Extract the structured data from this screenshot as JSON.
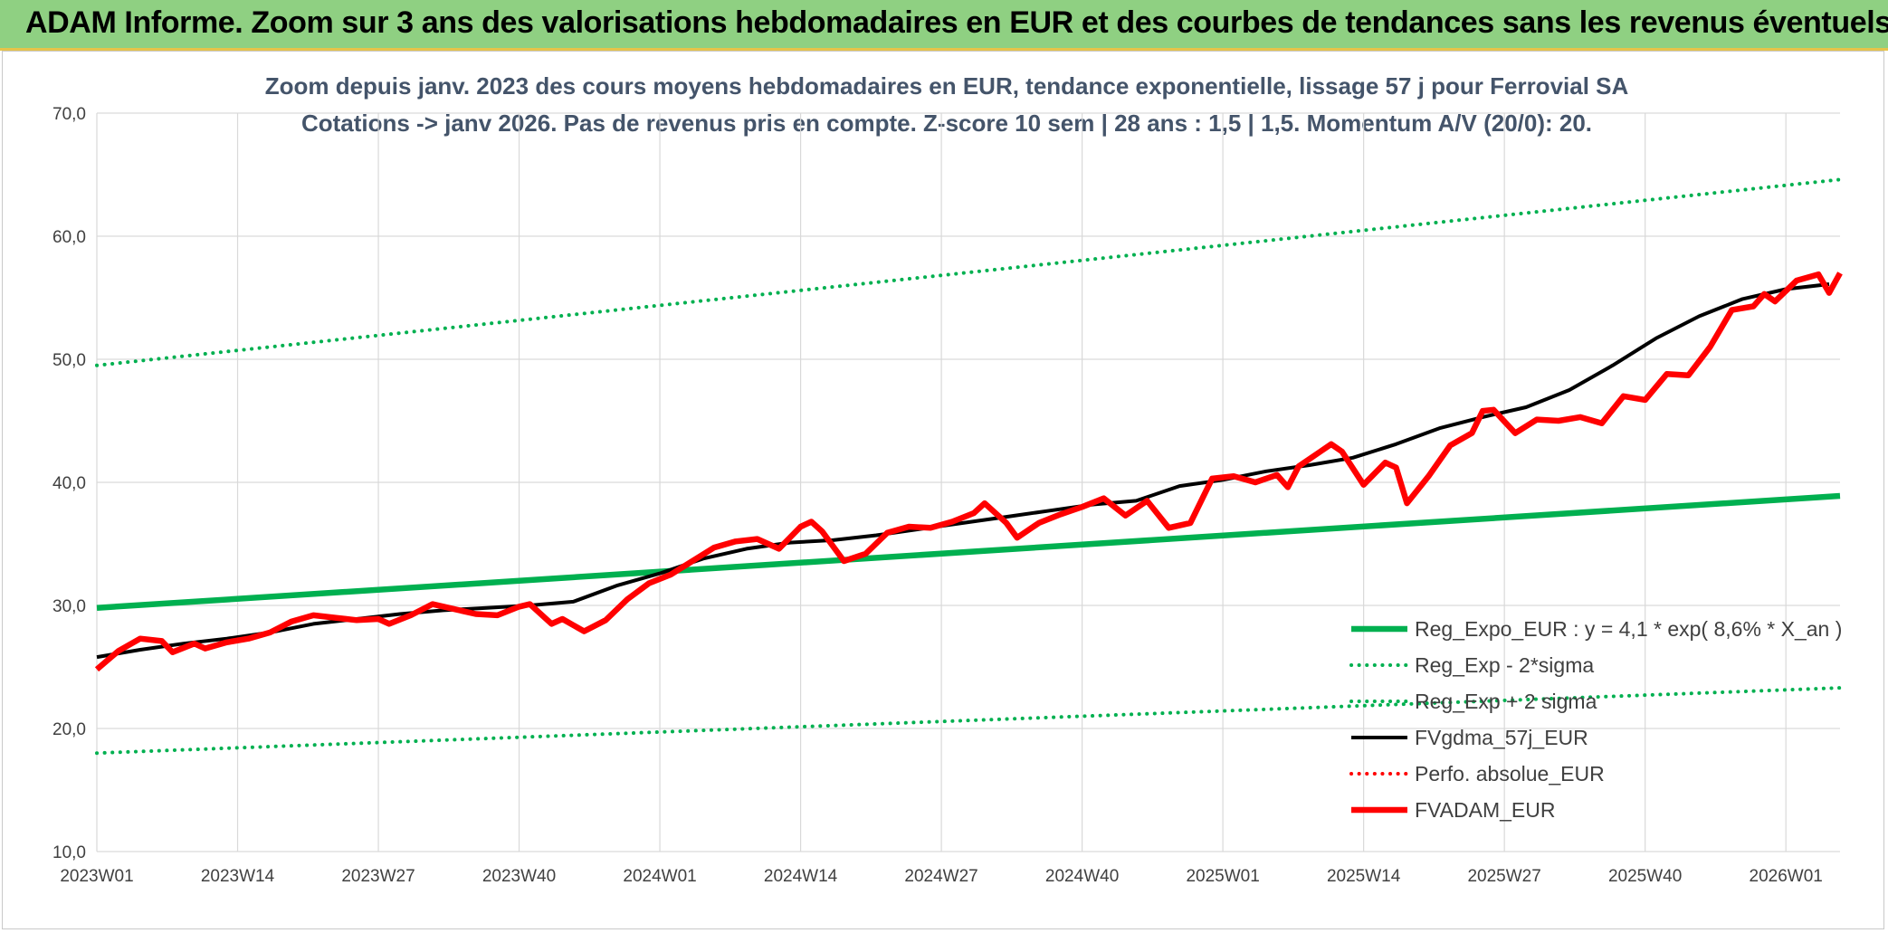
{
  "banner": {
    "title": "ADAM Informe. Zoom sur 3 ans des valorisations hebdomadaires en EUR et des courbes de tendances sans les revenus éventuels"
  },
  "colors": {
    "banner_bg": "#8fd082",
    "trend_green": "#00b050",
    "price_red": "#ff0000",
    "avg_black": "#000000"
  },
  "chart_data": {
    "type": "line",
    "title": "Zoom depuis janv. 2023 des cours moyens hebdomadaires en EUR, tendance exponentielle, lissage 57 j pour Ferrovial SA",
    "subtitle": "Cotations -> janv 2026. Pas de revenus pris en compte. Z-score 10 sem | 28 ans : 1,5 | 1,5. Momentum A/V (20/0): 20.",
    "x_ticks": [
      "2023W01",
      "2023W14",
      "2023W27",
      "2023W40",
      "2024W01",
      "2024W14",
      "2024W27",
      "2024W40",
      "2025W01",
      "2025W14",
      "2025W27",
      "2025W40",
      "2026W01"
    ],
    "y_ticks": [
      "10,0",
      "20,0",
      "30,0",
      "40,0",
      "50,0",
      "60,0",
      "70,0"
    ],
    "ylim": [
      10,
      70
    ],
    "x_week_range": [
      0,
      161
    ],
    "grid": true,
    "legend_position": "bottom-right",
    "series": [
      {
        "name": "Reg_Expo_EUR : y = 4,1 * exp( 8,6% *  X_an )",
        "style": "solid-thick",
        "color": "#00b050",
        "points": [
          [
            0,
            29.8
          ],
          [
            161,
            38.9
          ]
        ]
      },
      {
        "name": "Reg_Exp - 2*sigma",
        "style": "dotted",
        "color": "#00b050",
        "points": [
          [
            0,
            18.0
          ],
          [
            161,
            23.3
          ]
        ]
      },
      {
        "name": "Reg_Exp + 2 sigma",
        "style": "dotted",
        "color": "#00b050",
        "points": [
          [
            0,
            49.5
          ],
          [
            161,
            64.6
          ]
        ]
      },
      {
        "name": "FVgdma_57j_EUR",
        "style": "solid",
        "color": "#000000",
        "points": [
          [
            0,
            25.8
          ],
          [
            4,
            26.4
          ],
          [
            8,
            26.9
          ],
          [
            12,
            27.3
          ],
          [
            16,
            27.8
          ],
          [
            20,
            28.5
          ],
          [
            24,
            28.9
          ],
          [
            28,
            29.3
          ],
          [
            32,
            29.6
          ],
          [
            36,
            29.8
          ],
          [
            40,
            30.0
          ],
          [
            44,
            30.3
          ],
          [
            48,
            31.6
          ],
          [
            52,
            32.6
          ],
          [
            56,
            33.8
          ],
          [
            60,
            34.6
          ],
          [
            64,
            35.1
          ],
          [
            68,
            35.3
          ],
          [
            72,
            35.7
          ],
          [
            76,
            36.2
          ],
          [
            80,
            36.7
          ],
          [
            84,
            37.2
          ],
          [
            88,
            37.7
          ],
          [
            92,
            38.2
          ],
          [
            96,
            38.5
          ],
          [
            100,
            39.7
          ],
          [
            104,
            40.2
          ],
          [
            108,
            40.9
          ],
          [
            112,
            41.4
          ],
          [
            116,
            42.0
          ],
          [
            120,
            43.1
          ],
          [
            124,
            44.4
          ],
          [
            128,
            45.3
          ],
          [
            132,
            46.1
          ],
          [
            136,
            47.5
          ],
          [
            140,
            49.5
          ],
          [
            144,
            51.7
          ],
          [
            148,
            53.5
          ],
          [
            152,
            54.9
          ],
          [
            156,
            55.7
          ],
          [
            160,
            56.1
          ]
        ]
      },
      {
        "name": "Perfo. absolue_EUR",
        "style": "dotted",
        "color": "#ff0000",
        "points": []
      },
      {
        "name": "FVADAM_EUR",
        "style": "solid-thick",
        "color": "#ff0000",
        "points": [
          [
            0,
            24.8
          ],
          [
            2,
            26.3
          ],
          [
            4,
            27.3
          ],
          [
            6,
            27.1
          ],
          [
            7,
            26.2
          ],
          [
            9,
            26.9
          ],
          [
            10,
            26.5
          ],
          [
            12,
            27.0
          ],
          [
            14,
            27.3
          ],
          [
            16,
            27.8
          ],
          [
            18,
            28.7
          ],
          [
            20,
            29.2
          ],
          [
            22,
            29.0
          ],
          [
            24,
            28.8
          ],
          [
            26,
            28.9
          ],
          [
            27,
            28.5
          ],
          [
            29,
            29.2
          ],
          [
            31,
            30.1
          ],
          [
            33,
            29.7
          ],
          [
            35,
            29.3
          ],
          [
            37,
            29.2
          ],
          [
            39,
            29.9
          ],
          [
            40,
            30.1
          ],
          [
            42,
            28.5
          ],
          [
            43,
            28.9
          ],
          [
            45,
            27.9
          ],
          [
            47,
            28.8
          ],
          [
            49,
            30.5
          ],
          [
            51,
            31.8
          ],
          [
            53,
            32.5
          ],
          [
            55,
            33.6
          ],
          [
            57,
            34.7
          ],
          [
            59,
            35.2
          ],
          [
            61,
            35.4
          ],
          [
            63,
            34.6
          ],
          [
            65,
            36.4
          ],
          [
            66,
            36.8
          ],
          [
            67,
            36.0
          ],
          [
            69,
            33.6
          ],
          [
            71,
            34.2
          ],
          [
            73,
            35.9
          ],
          [
            75,
            36.4
          ],
          [
            77,
            36.3
          ],
          [
            79,
            36.8
          ],
          [
            81,
            37.5
          ],
          [
            82,
            38.3
          ],
          [
            84,
            36.7
          ],
          [
            85,
            35.5
          ],
          [
            87,
            36.7
          ],
          [
            89,
            37.4
          ],
          [
            91,
            38.0
          ],
          [
            93,
            38.7
          ],
          [
            95,
            37.3
          ],
          [
            97,
            38.5
          ],
          [
            99,
            36.3
          ],
          [
            101,
            36.7
          ],
          [
            103,
            40.3
          ],
          [
            105,
            40.5
          ],
          [
            107,
            40.0
          ],
          [
            109,
            40.6
          ],
          [
            110,
            39.6
          ],
          [
            111,
            41.3
          ],
          [
            113,
            42.5
          ],
          [
            114,
            43.1
          ],
          [
            115,
            42.5
          ],
          [
            117,
            39.8
          ],
          [
            119,
            41.6
          ],
          [
            120,
            41.2
          ],
          [
            121,
            38.3
          ],
          [
            123,
            40.5
          ],
          [
            125,
            43.0
          ],
          [
            127,
            44.0
          ],
          [
            128,
            45.8
          ],
          [
            129,
            45.9
          ],
          [
            131,
            44.0
          ],
          [
            133,
            45.1
          ],
          [
            135,
            45.0
          ],
          [
            137,
            45.3
          ],
          [
            139,
            44.8
          ],
          [
            141,
            47.0
          ],
          [
            143,
            46.7
          ],
          [
            145,
            48.8
          ],
          [
            147,
            48.7
          ],
          [
            149,
            51.0
          ],
          [
            151,
            54.0
          ],
          [
            153,
            54.3
          ],
          [
            154,
            55.3
          ],
          [
            155,
            54.7
          ],
          [
            157,
            56.4
          ],
          [
            159,
            56.9
          ],
          [
            160,
            55.4
          ],
          [
            161,
            57.0
          ]
        ]
      }
    ]
  }
}
